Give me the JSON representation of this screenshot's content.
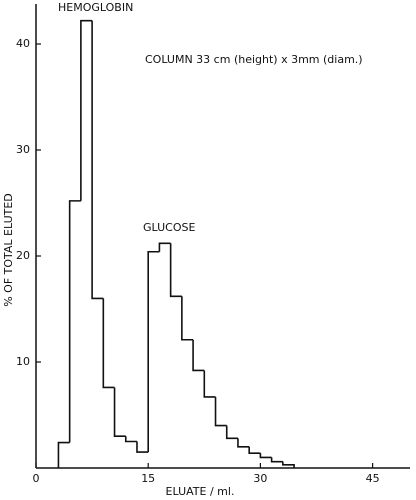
{
  "chart_data": {
    "type": "histogram",
    "annotations": [
      "HEMOGLOBIN",
      "COLUMN 33 cm (height) x 3mm (diam.)",
      "GLUCOSE"
    ],
    "x_label": "ELUATE / ml.",
    "y_label": "% OF TOTAL ELUTED",
    "bins": [
      3,
      4.5,
      6,
      7.5,
      9,
      10.5,
      12,
      13.5,
      15,
      16.5,
      18,
      19.5,
      21,
      22.5,
      24,
      25.5,
      27,
      28.5,
      30,
      31.5,
      33,
      34.5
    ],
    "counts": [
      2.4,
      25.2,
      42.2,
      16,
      7.6,
      3,
      2.5,
      1.5,
      20.4,
      21.2,
      16.2,
      12.1,
      9.2,
      6.7,
      4,
      2.8,
      2,
      1.4,
      1,
      0.6,
      0.3
    ],
    "color": "#111111",
    "xlim": [
      0,
      50
    ],
    "xticks": [
      0,
      15,
      30,
      45
    ],
    "ylim": [
      0,
      44
    ],
    "yticks": [
      10,
      20,
      30,
      40
    ]
  }
}
